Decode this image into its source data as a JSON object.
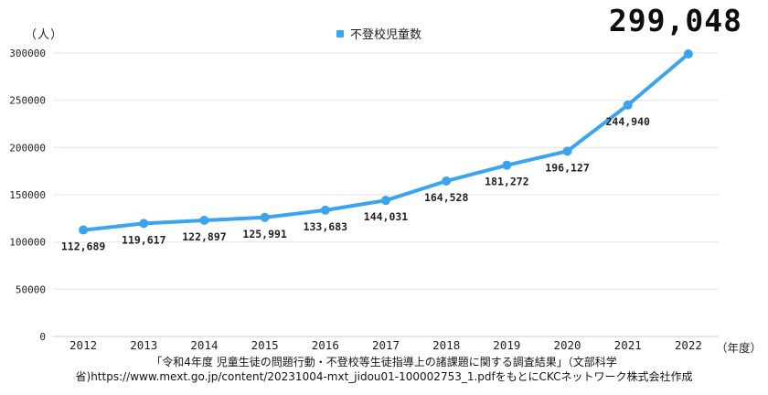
{
  "header": {
    "y_axis_unit": "（人）",
    "callout_value": "299,048"
  },
  "legend": {
    "label": "不登校児童数",
    "marker_color": "#3AA4F0"
  },
  "x_axis_unit": "（年度）",
  "footer": {
    "line1": "「令和4年度 児童生徒の問題行動・不登校等生徒指導上の諸課題に関する調査結果」（文部科学",
    "line2": "省)https://www.mext.go.jp/content/20231004-mxt_jidou01-100002753_1.pdfをもとにCKCネットワーク株式会社作成"
  },
  "chart_data": {
    "type": "line",
    "title": "",
    "categories": [
      "2012",
      "2013",
      "2014",
      "2015",
      "2016",
      "2017",
      "2018",
      "2019",
      "2020",
      "2021",
      "2022"
    ],
    "series": [
      {
        "name": "不登校児童数",
        "values": [
          112689,
          119617,
          122897,
          125991,
          133683,
          144031,
          164528,
          181272,
          196127,
          244940,
          299048
        ]
      }
    ],
    "point_labels": [
      "112,689",
      "119,617",
      "122,897",
      "125,991",
      "133,683",
      "144,031",
      "164,528",
      "181,272",
      "196,127",
      "244,940",
      ""
    ],
    "callout_label_2022": "299,048",
    "xlabel": "（年度）",
    "ylabel": "（人）",
    "ylim": [
      0,
      300000
    ],
    "ytick_step": 50000,
    "yticks": [
      "0",
      "50000",
      "100000",
      "150000",
      "200000",
      "250000",
      "300000"
    ],
    "grid": true,
    "legend_position": "top-center",
    "line_color": "#3AA4F0",
    "marker_color": "#3AA4F0",
    "grid_color": "#ebebeb",
    "baseline_color": "#d6d6d6"
  }
}
